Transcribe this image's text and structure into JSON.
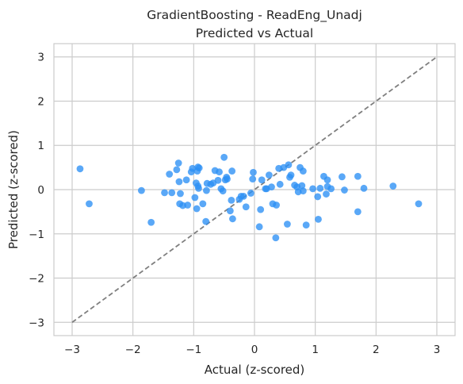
{
  "chart_data": {
    "type": "scatter",
    "title": "GradientBoosting - ReadEng_Unadj",
    "subtitle": "Predicted vs Actual",
    "xlabel": "Actual (z-scored)",
    "ylabel": "Predicted (z-scored)",
    "xlim": [
      -3.3,
      3.3
    ],
    "ylim": [
      -3.3,
      3.3
    ],
    "x_ticks": [
      -3,
      -2,
      -1,
      0,
      1,
      2,
      3
    ],
    "y_ticks": [
      -3,
      -2,
      -1,
      0,
      1,
      2,
      3
    ],
    "x_tick_labels": [
      "−3",
      "−2",
      "−1",
      "0",
      "1",
      "2",
      "3"
    ],
    "y_tick_labels": [
      "−3",
      "−2",
      "−1",
      "0",
      "1",
      "2",
      "3"
    ],
    "grid": true,
    "reference_line": {
      "style": "dashed",
      "points": [
        [
          -3,
          -3
        ],
        [
          3,
          3
        ]
      ],
      "color": "#7f7f7f"
    },
    "point_color": "#2c8ff5",
    "points": [
      [
        -2.87,
        0.47
      ],
      [
        -2.72,
        -0.32
      ],
      [
        -1.86,
        -0.02
      ],
      [
        -1.7,
        -0.74
      ],
      [
        -1.48,
        -0.07
      ],
      [
        -1.4,
        0.35
      ],
      [
        -1.36,
        -0.07
      ],
      [
        -1.28,
        0.45
      ],
      [
        -1.25,
        0.6
      ],
      [
        -1.24,
        0.18
      ],
      [
        -1.22,
        -0.09
      ],
      [
        -1.23,
        -0.32
      ],
      [
        -1.18,
        -0.36
      ],
      [
        -1.12,
        0.22
      ],
      [
        -1.1,
        -0.35
      ],
      [
        -1.04,
        0.4
      ],
      [
        -1.02,
        0.48
      ],
      [
        -0.98,
        -0.18
      ],
      [
        -0.96,
        0.15
      ],
      [
        -0.94,
        0.42
      ],
      [
        -0.93,
        0.51
      ],
      [
        -0.95,
        -0.43
      ],
      [
        -0.93,
        0.08
      ],
      [
        -0.92,
        0.03
      ],
      [
        -0.91,
        0.49
      ],
      [
        -0.85,
        -0.32
      ],
      [
        -0.8,
        -0.72
      ],
      [
        -0.78,
        0.14
      ],
      [
        -0.79,
        -0.02
      ],
      [
        -0.72,
        0.12
      ],
      [
        -0.68,
        0.15
      ],
      [
        -0.65,
        0.43
      ],
      [
        -0.6,
        0.21
      ],
      [
        -0.58,
        0.4
      ],
      [
        -0.55,
        0.02
      ],
      [
        -0.52,
        -0.03
      ],
      [
        -0.5,
        0.73
      ],
      [
        -0.48,
        0.22
      ],
      [
        -0.46,
        0.28
      ],
      [
        -0.45,
        0.24
      ],
      [
        -0.4,
        -0.48
      ],
      [
        -0.38,
        -0.24
      ],
      [
        -0.36,
        -0.66
      ],
      [
        -0.37,
        0.42
      ],
      [
        -0.25,
        -0.22
      ],
      [
        -0.22,
        -0.15
      ],
      [
        -0.18,
        -0.15
      ],
      [
        -0.14,
        -0.39
      ],
      [
        -0.06,
        -0.08
      ],
      [
        -0.03,
        0.24
      ],
      [
        -0.02,
        0.39
      ],
      [
        0.08,
        -0.84
      ],
      [
        0.1,
        -0.45
      ],
      [
        0.12,
        0.22
      ],
      [
        0.18,
        0.02
      ],
      [
        0.2,
        0.02
      ],
      [
        0.24,
        0.33
      ],
      [
        0.28,
        0.06
      ],
      [
        0.3,
        -0.32
      ],
      [
        0.35,
        -1.09
      ],
      [
        0.36,
        -0.35
      ],
      [
        0.4,
        0.48
      ],
      [
        0.42,
        0.12
      ],
      [
        0.48,
        0.5
      ],
      [
        0.54,
        -0.78
      ],
      [
        0.56,
        0.56
      ],
      [
        0.58,
        0.28
      ],
      [
        0.6,
        0.33
      ],
      [
        0.66,
        0.1
      ],
      [
        0.7,
        0.06
      ],
      [
        0.72,
        -0.05
      ],
      [
        0.75,
        0.5
      ],
      [
        0.78,
        0.09
      ],
      [
        0.8,
        0.42
      ],
      [
        0.8,
        -0.03
      ],
      [
        0.85,
        -0.8
      ],
      [
        0.96,
        0.02
      ],
      [
        1.04,
        -0.16
      ],
      [
        1.05,
        -0.67
      ],
      [
        1.08,
        0.03
      ],
      [
        1.14,
        0.3
      ],
      [
        1.18,
        -0.1
      ],
      [
        1.2,
        0.07
      ],
      [
        1.2,
        0.22
      ],
      [
        1.26,
        0.02
      ],
      [
        1.44,
        0.29
      ],
      [
        1.48,
        -0.01
      ],
      [
        1.7,
        0.3
      ],
      [
        1.7,
        -0.5
      ],
      [
        1.8,
        0.03
      ],
      [
        2.28,
        0.08
      ],
      [
        2.7,
        -0.32
      ]
    ]
  }
}
